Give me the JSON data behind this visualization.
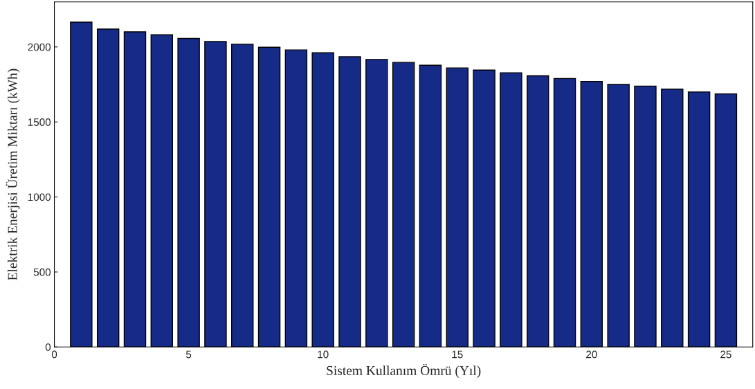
{
  "chart_data": {
    "type": "bar",
    "xlabel": "Sistem Kullanım Ömrü (Yıl)",
    "ylabel": "Elektrik Enerjisi Üretim Miktarı (kWh)",
    "x": [
      1,
      2,
      3,
      4,
      5,
      6,
      7,
      8,
      9,
      10,
      11,
      12,
      13,
      14,
      15,
      16,
      17,
      18,
      19,
      20,
      21,
      22,
      23,
      24,
      25
    ],
    "values": [
      2165,
      2119,
      2101,
      2081,
      2057,
      2036,
      2018,
      1998,
      1980,
      1961,
      1935,
      1917,
      1897,
      1878,
      1860,
      1846,
      1828,
      1808,
      1790,
      1770,
      1750,
      1739,
      1719,
      1700,
      1687
    ],
    "color": "#162a88",
    "xlim": [
      0,
      26
    ],
    "xticks": [
      0,
      5,
      10,
      15,
      20,
      25
    ],
    "ylim": [
      0,
      2300
    ],
    "yticks": [
      0,
      500,
      1000,
      1500,
      2000
    ],
    "grid": false
  }
}
